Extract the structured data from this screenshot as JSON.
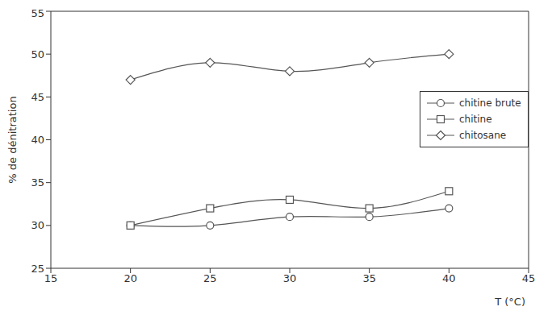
{
  "chart_data": {
    "type": "line",
    "x_label": "T (°C)",
    "y_label": "% de dénitration",
    "x": [
      20,
      25,
      30,
      35,
      40
    ],
    "series": [
      {
        "name": "chitine brute",
        "color": "#555555",
        "marker": "circle",
        "line_style": "smooth",
        "values": [
          30,
          30,
          31,
          31,
          32
        ]
      },
      {
        "name": "chitine",
        "color": "#555555",
        "marker": "square",
        "line_style": "smooth",
        "values": [
          30,
          32,
          33,
          32,
          34
        ]
      },
      {
        "name": "chitosane",
        "color": "#555555",
        "marker": "diamond",
        "line_style": "smooth",
        "values": [
          47,
          49,
          48,
          49,
          50
        ]
      }
    ],
    "xlim": [
      15,
      45
    ],
    "xticks": [
      15,
      20,
      25,
      30,
      35,
      40,
      45
    ],
    "ylim": [
      25,
      55
    ],
    "yticks": [
      25,
      30,
      35,
      40,
      45,
      50,
      55
    ],
    "grid": false,
    "legend": "right"
  }
}
